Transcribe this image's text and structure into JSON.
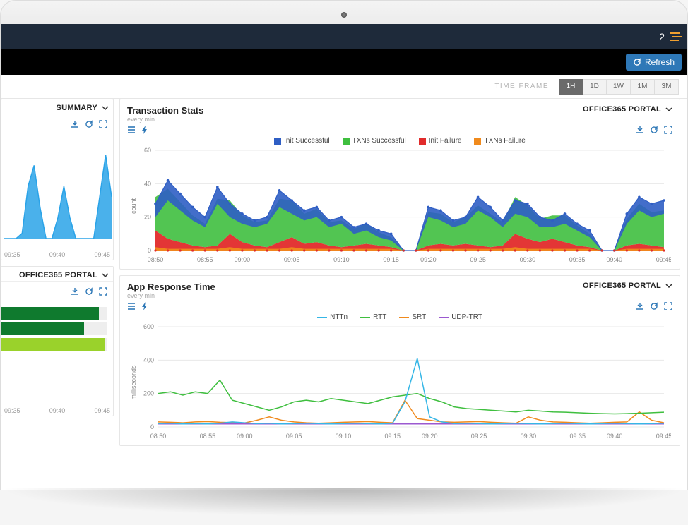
{
  "topbar": {
    "notification_count": "2"
  },
  "refresh": {
    "label": "Refresh"
  },
  "timeframe": {
    "label": "TIME FRAME",
    "options": [
      "1H",
      "1D",
      "1W",
      "1M",
      "3M"
    ],
    "active": "1H"
  },
  "left": {
    "panel1": {
      "selector": "SUMMARY",
      "xlabels": [
        "09:35",
        "09:40",
        "09:45"
      ],
      "chart": {
        "type": "area",
        "color": "#2aa3e8",
        "fill": "#2aa3e8",
        "ylim": [
          0,
          10
        ],
        "points": [
          0,
          0,
          0,
          0.5,
          5,
          7,
          3,
          0,
          0,
          2,
          5,
          2,
          0,
          0,
          0,
          0,
          4,
          8,
          4
        ]
      }
    },
    "panel2": {
      "selector": "OFFICE365 PORTAL",
      "bars": [
        {
          "value": 92,
          "color": "#0f7a2e"
        },
        {
          "value": 78,
          "color": "#0f7a2e"
        },
        {
          "value": 98,
          "color": "#9ad22b"
        }
      ],
      "xlabels": [
        "09:35",
        "09:40",
        "09:45"
      ]
    }
  },
  "transaction_stats": {
    "title": "Transaction Stats",
    "subtitle": "every min",
    "selector": "OFFICE365 PORTAL",
    "legend": [
      {
        "label": "Init Successful",
        "color": "#2f5ec4",
        "type": "box"
      },
      {
        "label": "TXNs Successful",
        "color": "#3fbf3f",
        "type": "box"
      },
      {
        "label": "Init Failure",
        "color": "#e12b2b",
        "type": "box"
      },
      {
        "label": "TXNs Failure",
        "color": "#f08a1d",
        "type": "box"
      }
    ],
    "y": {
      "title": "count",
      "lim": [
        0,
        60
      ],
      "ticks": [
        0,
        20,
        40,
        60
      ]
    },
    "xlabels": [
      "08:50",
      "08:55",
      "09:00",
      "09:05",
      "09:10",
      "09:15",
      "09:20",
      "09:25",
      "09:30",
      "09:35",
      "09:40",
      "09:45"
    ],
    "series": {
      "init_success": [
        28,
        42,
        34,
        26,
        20,
        38,
        28,
        22,
        18,
        20,
        36,
        30,
        24,
        26,
        18,
        20,
        14,
        16,
        12,
        10,
        0,
        0,
        26,
        24,
        18,
        20,
        32,
        26,
        18,
        30,
        28,
        20,
        18,
        22,
        16,
        12,
        0,
        0,
        22,
        32,
        28,
        30
      ],
      "txns_success": [
        20,
        30,
        24,
        18,
        14,
        28,
        20,
        16,
        14,
        16,
        26,
        22,
        18,
        20,
        14,
        16,
        10,
        12,
        8,
        6,
        0,
        0,
        20,
        18,
        14,
        16,
        24,
        20,
        14,
        22,
        20,
        14,
        14,
        16,
        12,
        8,
        0,
        0,
        16,
        24,
        20,
        22
      ],
      "init_failure": [
        10,
        6,
        4,
        2,
        1,
        2,
        8,
        4,
        2,
        1,
        4,
        6,
        3,
        4,
        2,
        1,
        2,
        3,
        2,
        1,
        0,
        0,
        2,
        3,
        2,
        3,
        2,
        1,
        2,
        8,
        6,
        4,
        6,
        4,
        2,
        1,
        0,
        0,
        2,
        3,
        2,
        1
      ],
      "txns_failure": [
        2,
        1,
        1,
        1,
        1,
        1,
        2,
        1,
        1,
        1,
        1,
        2,
        1,
        1,
        1,
        1,
        1,
        1,
        1,
        1,
        0,
        0,
        1,
        1,
        1,
        1,
        1,
        1,
        1,
        2,
        1,
        1,
        1,
        1,
        1,
        1,
        0,
        0,
        1,
        1,
        1,
        1
      ]
    },
    "marker_color": "#2f5ec4",
    "grid_color": "#e8e8e8",
    "background": "#ffffff"
  },
  "app_response": {
    "title": "App Response Time",
    "subtitle": "every min",
    "selector": "OFFICE365 PORTAL",
    "legend": [
      {
        "label": "NTTn",
        "color": "#35b6e6",
        "type": "line"
      },
      {
        "label": "RTT",
        "color": "#3fbf3f",
        "type": "line"
      },
      {
        "label": "SRT",
        "color": "#f08a1d",
        "type": "line"
      },
      {
        "label": "UDP-TRT",
        "color": "#9b59d0",
        "type": "line"
      }
    ],
    "y": {
      "title": "milliseconds",
      "lim": [
        0,
        600
      ],
      "ticks": [
        0,
        200,
        400,
        600
      ]
    },
    "xlabels": [
      "08:50",
      "08:55",
      "09:00",
      "09:05",
      "09:10",
      "09:15",
      "09:20",
      "09:25",
      "09:30",
      "09:35",
      "09:40",
      "09:45"
    ],
    "series": {
      "nttn": [
        20,
        22,
        18,
        20,
        18,
        22,
        30,
        25,
        20,
        22,
        18,
        20,
        22,
        20,
        18,
        20,
        22,
        20,
        18,
        22,
        150,
        410,
        60,
        30,
        20,
        22,
        20,
        18,
        20,
        22,
        20,
        18,
        20,
        22,
        20,
        18,
        20,
        22,
        20,
        18,
        20,
        22
      ],
      "rtt": [
        200,
        210,
        190,
        210,
        200,
        280,
        160,
        140,
        120,
        100,
        120,
        150,
        160,
        150,
        170,
        160,
        150,
        140,
        160,
        180,
        190,
        200,
        170,
        150,
        120,
        110,
        105,
        100,
        95,
        90,
        100,
        95,
        90,
        88,
        85,
        82,
        80,
        78,
        80,
        82,
        85,
        88
      ],
      "srt": [
        30,
        28,
        25,
        30,
        32,
        28,
        26,
        24,
        40,
        60,
        40,
        30,
        25,
        22,
        25,
        28,
        30,
        32,
        28,
        25,
        160,
        50,
        40,
        30,
        28,
        30,
        32,
        28,
        25,
        22,
        60,
        40,
        30,
        28,
        25,
        22,
        25,
        28,
        30,
        90,
        40,
        25
      ],
      "udp_trt": [
        18,
        18,
        18,
        18,
        18,
        18,
        18,
        18,
        18,
        18,
        18,
        18,
        18,
        18,
        18,
        18,
        18,
        18,
        18,
        18,
        18,
        18,
        18,
        18,
        18,
        18,
        18,
        18,
        18,
        18,
        18,
        18,
        18,
        18,
        18,
        18,
        18,
        18,
        18,
        18,
        18,
        18
      ]
    },
    "grid_color": "#e8e8e8",
    "background": "#ffffff"
  }
}
